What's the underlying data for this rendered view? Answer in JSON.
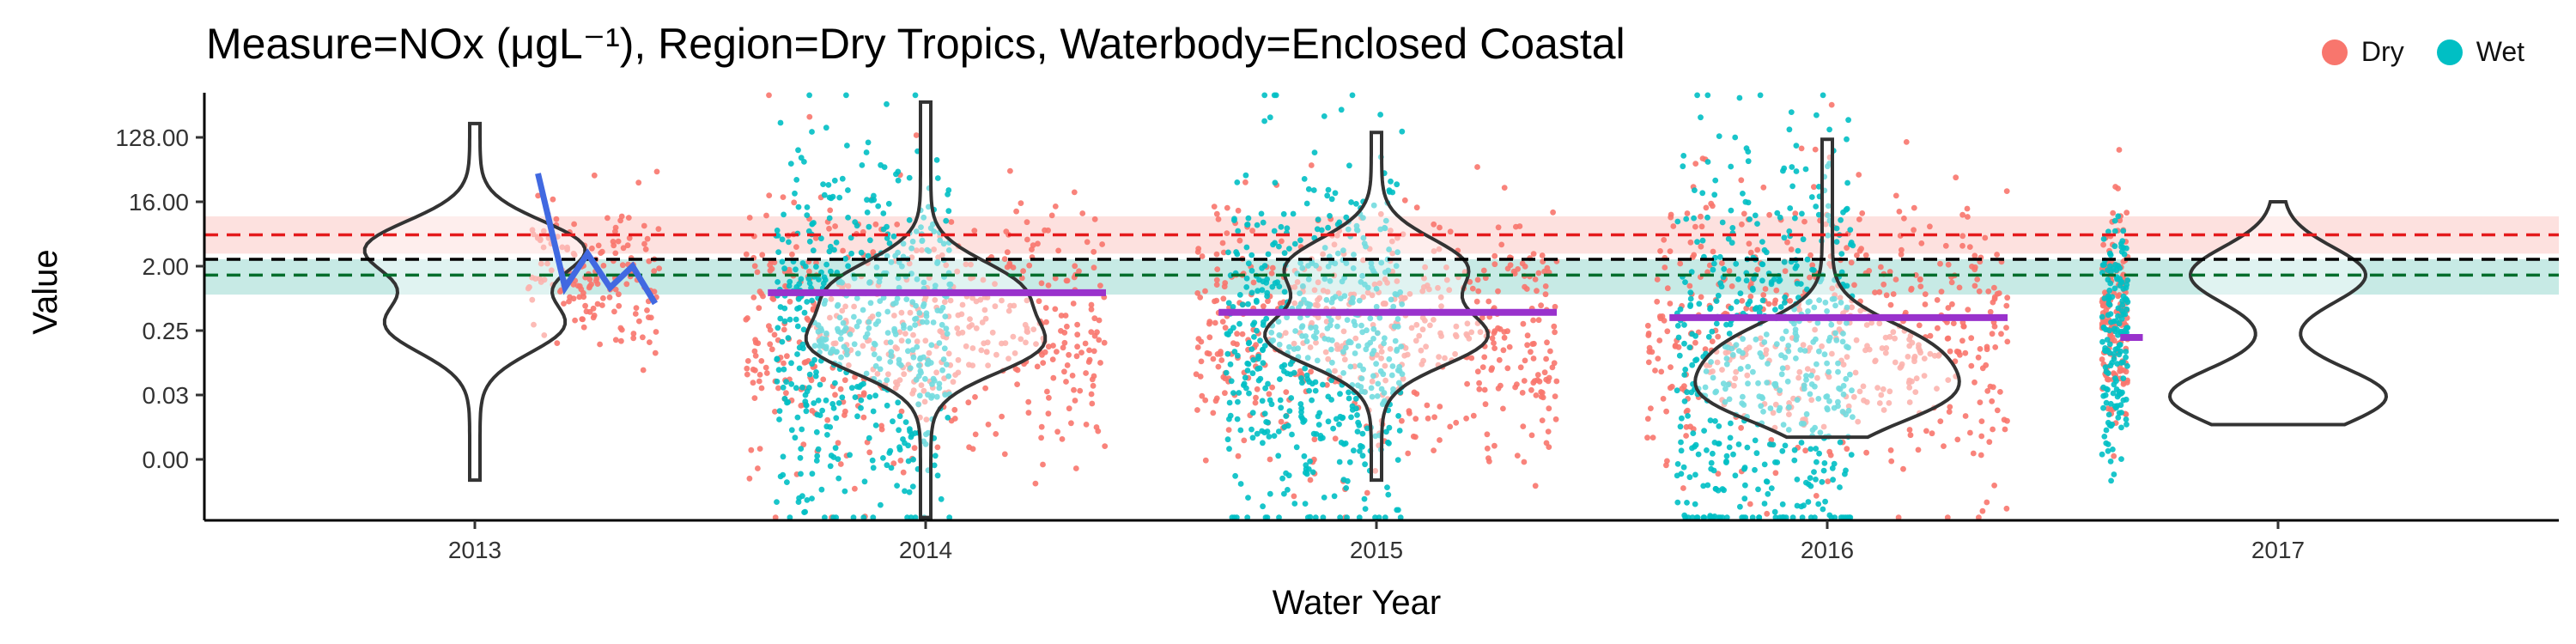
{
  "chart_data": {
    "type": "scatter",
    "title": "Measure=NOx (μgL⁻¹), Region=Dry Tropics, Waterbody=Enclosed Coastal",
    "xlabel": "Water Year",
    "ylabel": "Value",
    "x_ticks": [
      "2013",
      "2014",
      "2015",
      "2016",
      "2017"
    ],
    "y_ticks": [
      "0.00",
      "0.03",
      "0.25",
      "2.00",
      "16.00",
      "128.00"
    ],
    "y_scale": "log",
    "legend": {
      "position": "top-right",
      "entries": [
        {
          "name": "Dry",
          "color": "#F8766D"
        },
        {
          "name": "Wet",
          "color": "#00BFC4"
        }
      ]
    },
    "reference_lines": [
      {
        "value": 5.5,
        "color": "#E41A1C",
        "style": "dashed",
        "band": [
          3.0,
          10.0
        ],
        "band_color": "#F8766D"
      },
      {
        "value": 2.5,
        "color": "#000000",
        "style": "dashed"
      },
      {
        "value": 1.5,
        "color": "#006D2C",
        "style": "dashed",
        "band": [
          0.8,
          2.5
        ],
        "band_color": "#00A087"
      }
    ],
    "series": [
      {
        "name": "Dry",
        "color": "#F8766D",
        "groups": [
          {
            "year": 2013,
            "median": 1.5,
            "p05": 0.05,
            "p95": 12
          },
          {
            "year": 2014,
            "median": 0.25,
            "p05": 0.03,
            "p95": 8
          },
          {
            "year": 2015,
            "median": 0.2,
            "p05": 0.03,
            "p95": 6
          },
          {
            "year": 2016,
            "median": 0.25,
            "p05": 0.03,
            "p95": 10
          },
          {
            "year": 2017,
            "median": 0.5,
            "p05": 0.03,
            "p95": 6
          }
        ]
      },
      {
        "name": "Wet",
        "color": "#00BFC4",
        "groups": [
          {
            "year": 2014,
            "median": 0.25,
            "p05": 0.03,
            "p95": 30
          },
          {
            "year": 2015,
            "median": 0.15,
            "p05": 0.03,
            "p95": 20
          },
          {
            "year": 2016,
            "median": 0.12,
            "p05": 0.02,
            "p95": 40
          },
          {
            "year": 2017,
            "median": 0.2,
            "p05": 0.05,
            "p95": 5
          }
        ]
      }
    ],
    "violins": [
      {
        "year": 2013,
        "min": 0.002,
        "max": 200,
        "modes": [
          3.5,
          0.3
        ],
        "center": 1.0
      },
      {
        "year": 2014,
        "min": 0.0006,
        "max": 400,
        "modes": [
          0.15,
          1.0
        ],
        "center": 0.3
      },
      {
        "year": 2015,
        "min": 0.002,
        "max": 150,
        "modes": [
          0.2,
          2.0
        ],
        "center": 0.2
      },
      {
        "year": 2016,
        "min": 0.008,
        "max": 120,
        "modes": [
          0.03,
          0.15
        ],
        "center": 0.1
      },
      {
        "year": 2017,
        "min": 0.012,
        "max": 16,
        "modes": [
          0.03,
          1.5
        ],
        "center": 0.05
      }
    ],
    "trend_lines": [
      {
        "name": "smooth",
        "color": "#4169E1",
        "points": [
          [
            2013.14,
            40
          ],
          [
            2013.2,
            1.0
          ],
          [
            2013.25,
            3.0
          ],
          [
            2013.3,
            1.0
          ],
          [
            2013.35,
            2.0
          ],
          [
            2013.4,
            0.6
          ]
        ]
      },
      {
        "name": "annual-mean",
        "color": "#9932CC",
        "segments": [
          [
            2013.65,
            2014.4,
            0.85
          ],
          [
            2014.65,
            2015.4,
            0.45
          ],
          [
            2015.65,
            2016.4,
            0.38
          ],
          [
            2016.65,
            2016.7,
            0.2
          ]
        ]
      }
    ]
  }
}
